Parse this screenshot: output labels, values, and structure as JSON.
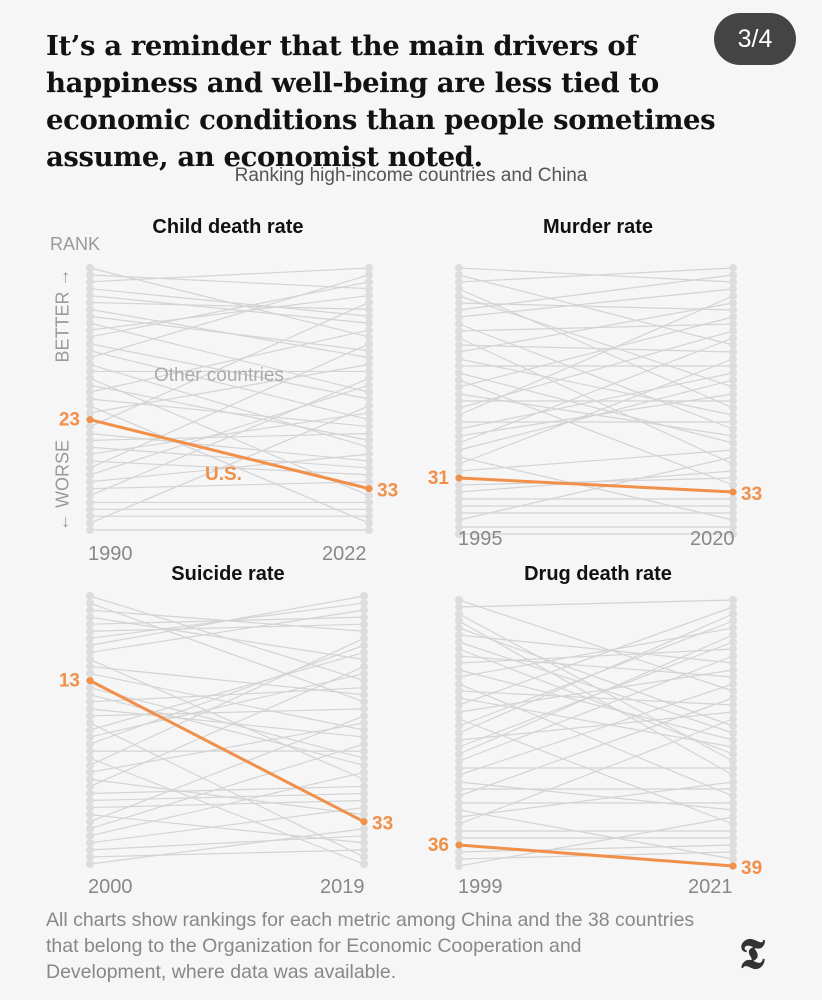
{
  "headline": "It’s a reminder that the main drivers of happiness and well-being are less tied to economic conditions than people sometimes assume, an economist noted.",
  "badge": "3/4",
  "subtitle": "Ranking high-income countries and China",
  "axis": {
    "rank": "RANK",
    "better": "BETTER →",
    "worse": "← WORSE"
  },
  "colors": {
    "us": "#f0904a",
    "other": "#d4d4d4"
  },
  "chart_data": [
    {
      "type": "line",
      "title": "Child death rate",
      "x": [
        "1990",
        "2022"
      ],
      "series": [
        {
          "name": "U.S.",
          "values": [
            23,
            33
          ]
        }
      ],
      "annotation": "Other countries",
      "ylim": [
        1,
        39
      ],
      "y_inverted": true
    },
    {
      "type": "line",
      "title": "Murder rate",
      "x": [
        "1995",
        "2020"
      ],
      "series": [
        {
          "values": [
            31,
            33
          ]
        }
      ],
      "ylim": [
        1,
        39
      ],
      "y_inverted": true
    },
    {
      "type": "line",
      "title": "Suicide rate",
      "x": [
        "2000",
        "2019"
      ],
      "series": [
        {
          "values": [
            13,
            33
          ]
        }
      ],
      "ylim": [
        1,
        39
      ],
      "y_inverted": true
    },
    {
      "type": "line",
      "title": "Drug death rate",
      "x": [
        "1999",
        "2021"
      ],
      "series": [
        {
          "values": [
            36,
            39
          ]
        }
      ],
      "ylim": [
        1,
        39
      ],
      "y_inverted": true
    }
  ],
  "footnote": "All charts show rankings for each metric among China and the 38 countries that belong to the Organization for Economic Cooperation and Development, where data was available.",
  "logo": "T"
}
